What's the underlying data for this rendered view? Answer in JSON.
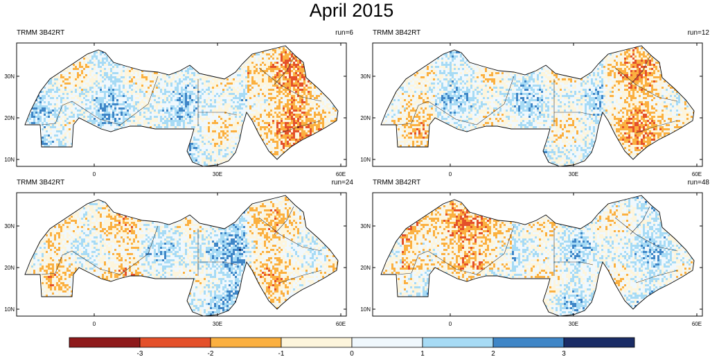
{
  "title": "April 2015",
  "colors": {
    "bins": [
      "#8e1a1b",
      "#e4502a",
      "#fbb040",
      "#fdf5dc",
      "#f0f8fd",
      "#a7dbf5",
      "#3f86c7",
      "#1a2c66"
    ],
    "border": "#000000",
    "region_outline": "#333333"
  },
  "map": {
    "x_ticks": [
      "0",
      "30E",
      "60E"
    ],
    "y_ticks": [
      "30N",
      "20N",
      "10N"
    ]
  },
  "panels": [
    {
      "dataset": "TRMM 3B42RT",
      "run_label": "run=6"
    },
    {
      "dataset": "TRMM 3B42RT",
      "run_label": "run=12"
    },
    {
      "dataset": "TRMM 3B42RT",
      "run_label": "run=24"
    },
    {
      "dataset": "TRMM 3B42RT",
      "run_label": "run=48"
    }
  ],
  "colorbar": {
    "labels": [
      "-3",
      "-2",
      "-1",
      "0",
      "1",
      "2",
      "3"
    ]
  }
}
